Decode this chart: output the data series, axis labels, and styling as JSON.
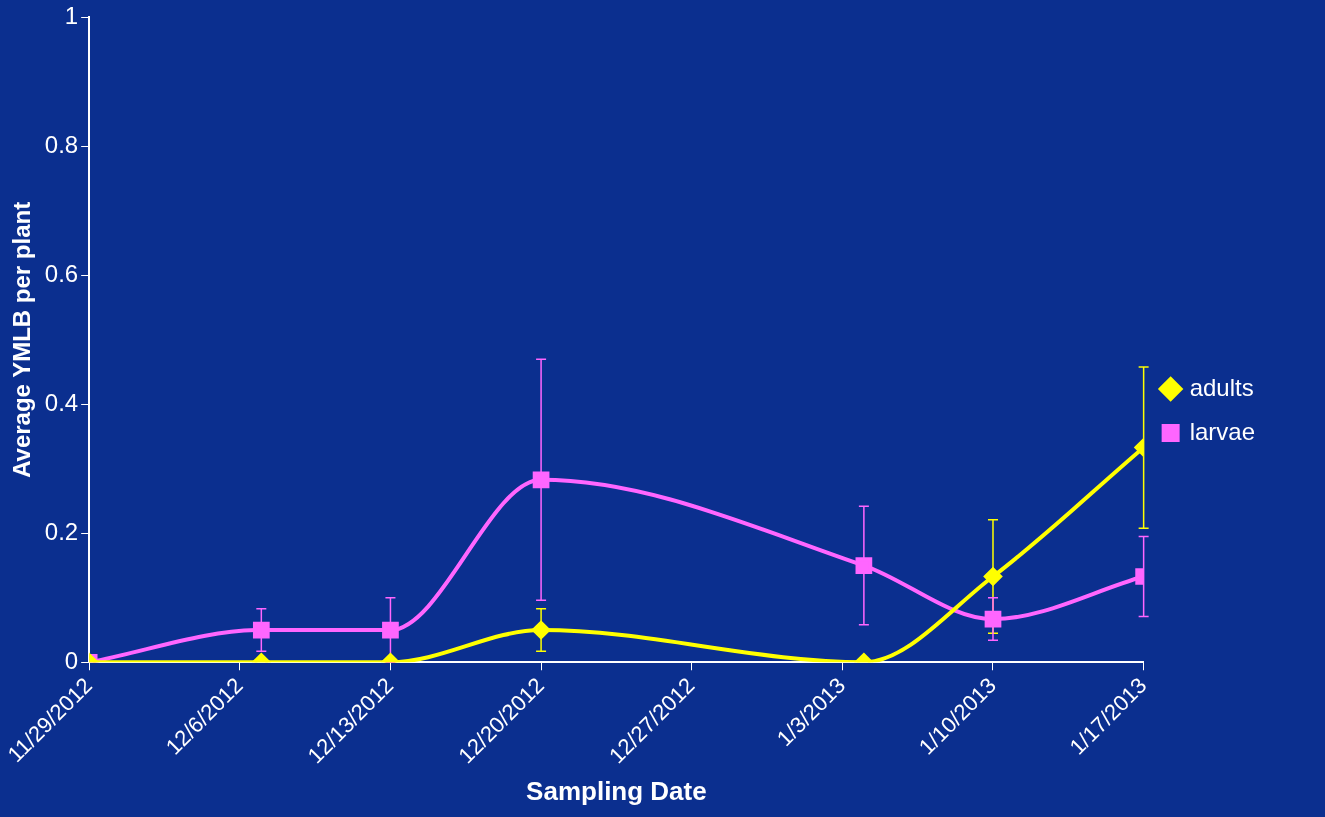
{
  "chart_data": {
    "type": "line",
    "xlabel": "Sampling Date",
    "ylabel": "Average YMLB per plant",
    "xlim": [
      "2012-11-29",
      "2013-01-17"
    ],
    "xticks": [
      {
        "value": "2012-11-29",
        "label": "11/29/2012"
      },
      {
        "value": "2012-12-06",
        "label": "12/6/2012"
      },
      {
        "value": "2012-12-13",
        "label": "12/13/2012"
      },
      {
        "value": "2012-12-20",
        "label": "12/20/2012"
      },
      {
        "value": "2012-12-27",
        "label": "12/27/2012"
      },
      {
        "value": "2013-01-03",
        "label": "1/3/2013"
      },
      {
        "value": "2013-01-10",
        "label": "1/10/2013"
      },
      {
        "value": "2013-01-17",
        "label": "1/17/2013"
      }
    ],
    "ylim": [
      0,
      1
    ],
    "yticks": [
      0,
      0.2,
      0.4,
      0.6,
      0.8,
      1
    ],
    "grid": false,
    "legend": "right",
    "line_style": "solid",
    "x": [
      "2012-11-29",
      "2012-12-07",
      "2012-12-13",
      "2012-12-20",
      "2013-01-04",
      "2013-01-10",
      "2013-01-17"
    ],
    "series": [
      {
        "name": "adults",
        "color": "#ffff00",
        "marker": "diamond",
        "values": [
          0,
          0,
          0,
          0.05,
          0,
          0.133,
          0.333
        ],
        "errors": [
          null,
          null,
          null,
          0.033,
          null,
          0.088,
          0.125
        ]
      },
      {
        "name": "larvae",
        "color": "#ff66ff",
        "marker": "square",
        "values": [
          0,
          0.05,
          0.05,
          0.283,
          0.15,
          0.067,
          0.133
        ],
        "errors": [
          null,
          0.033,
          0.05,
          0.187,
          0.092,
          0.033,
          0.062
        ]
      }
    ]
  }
}
